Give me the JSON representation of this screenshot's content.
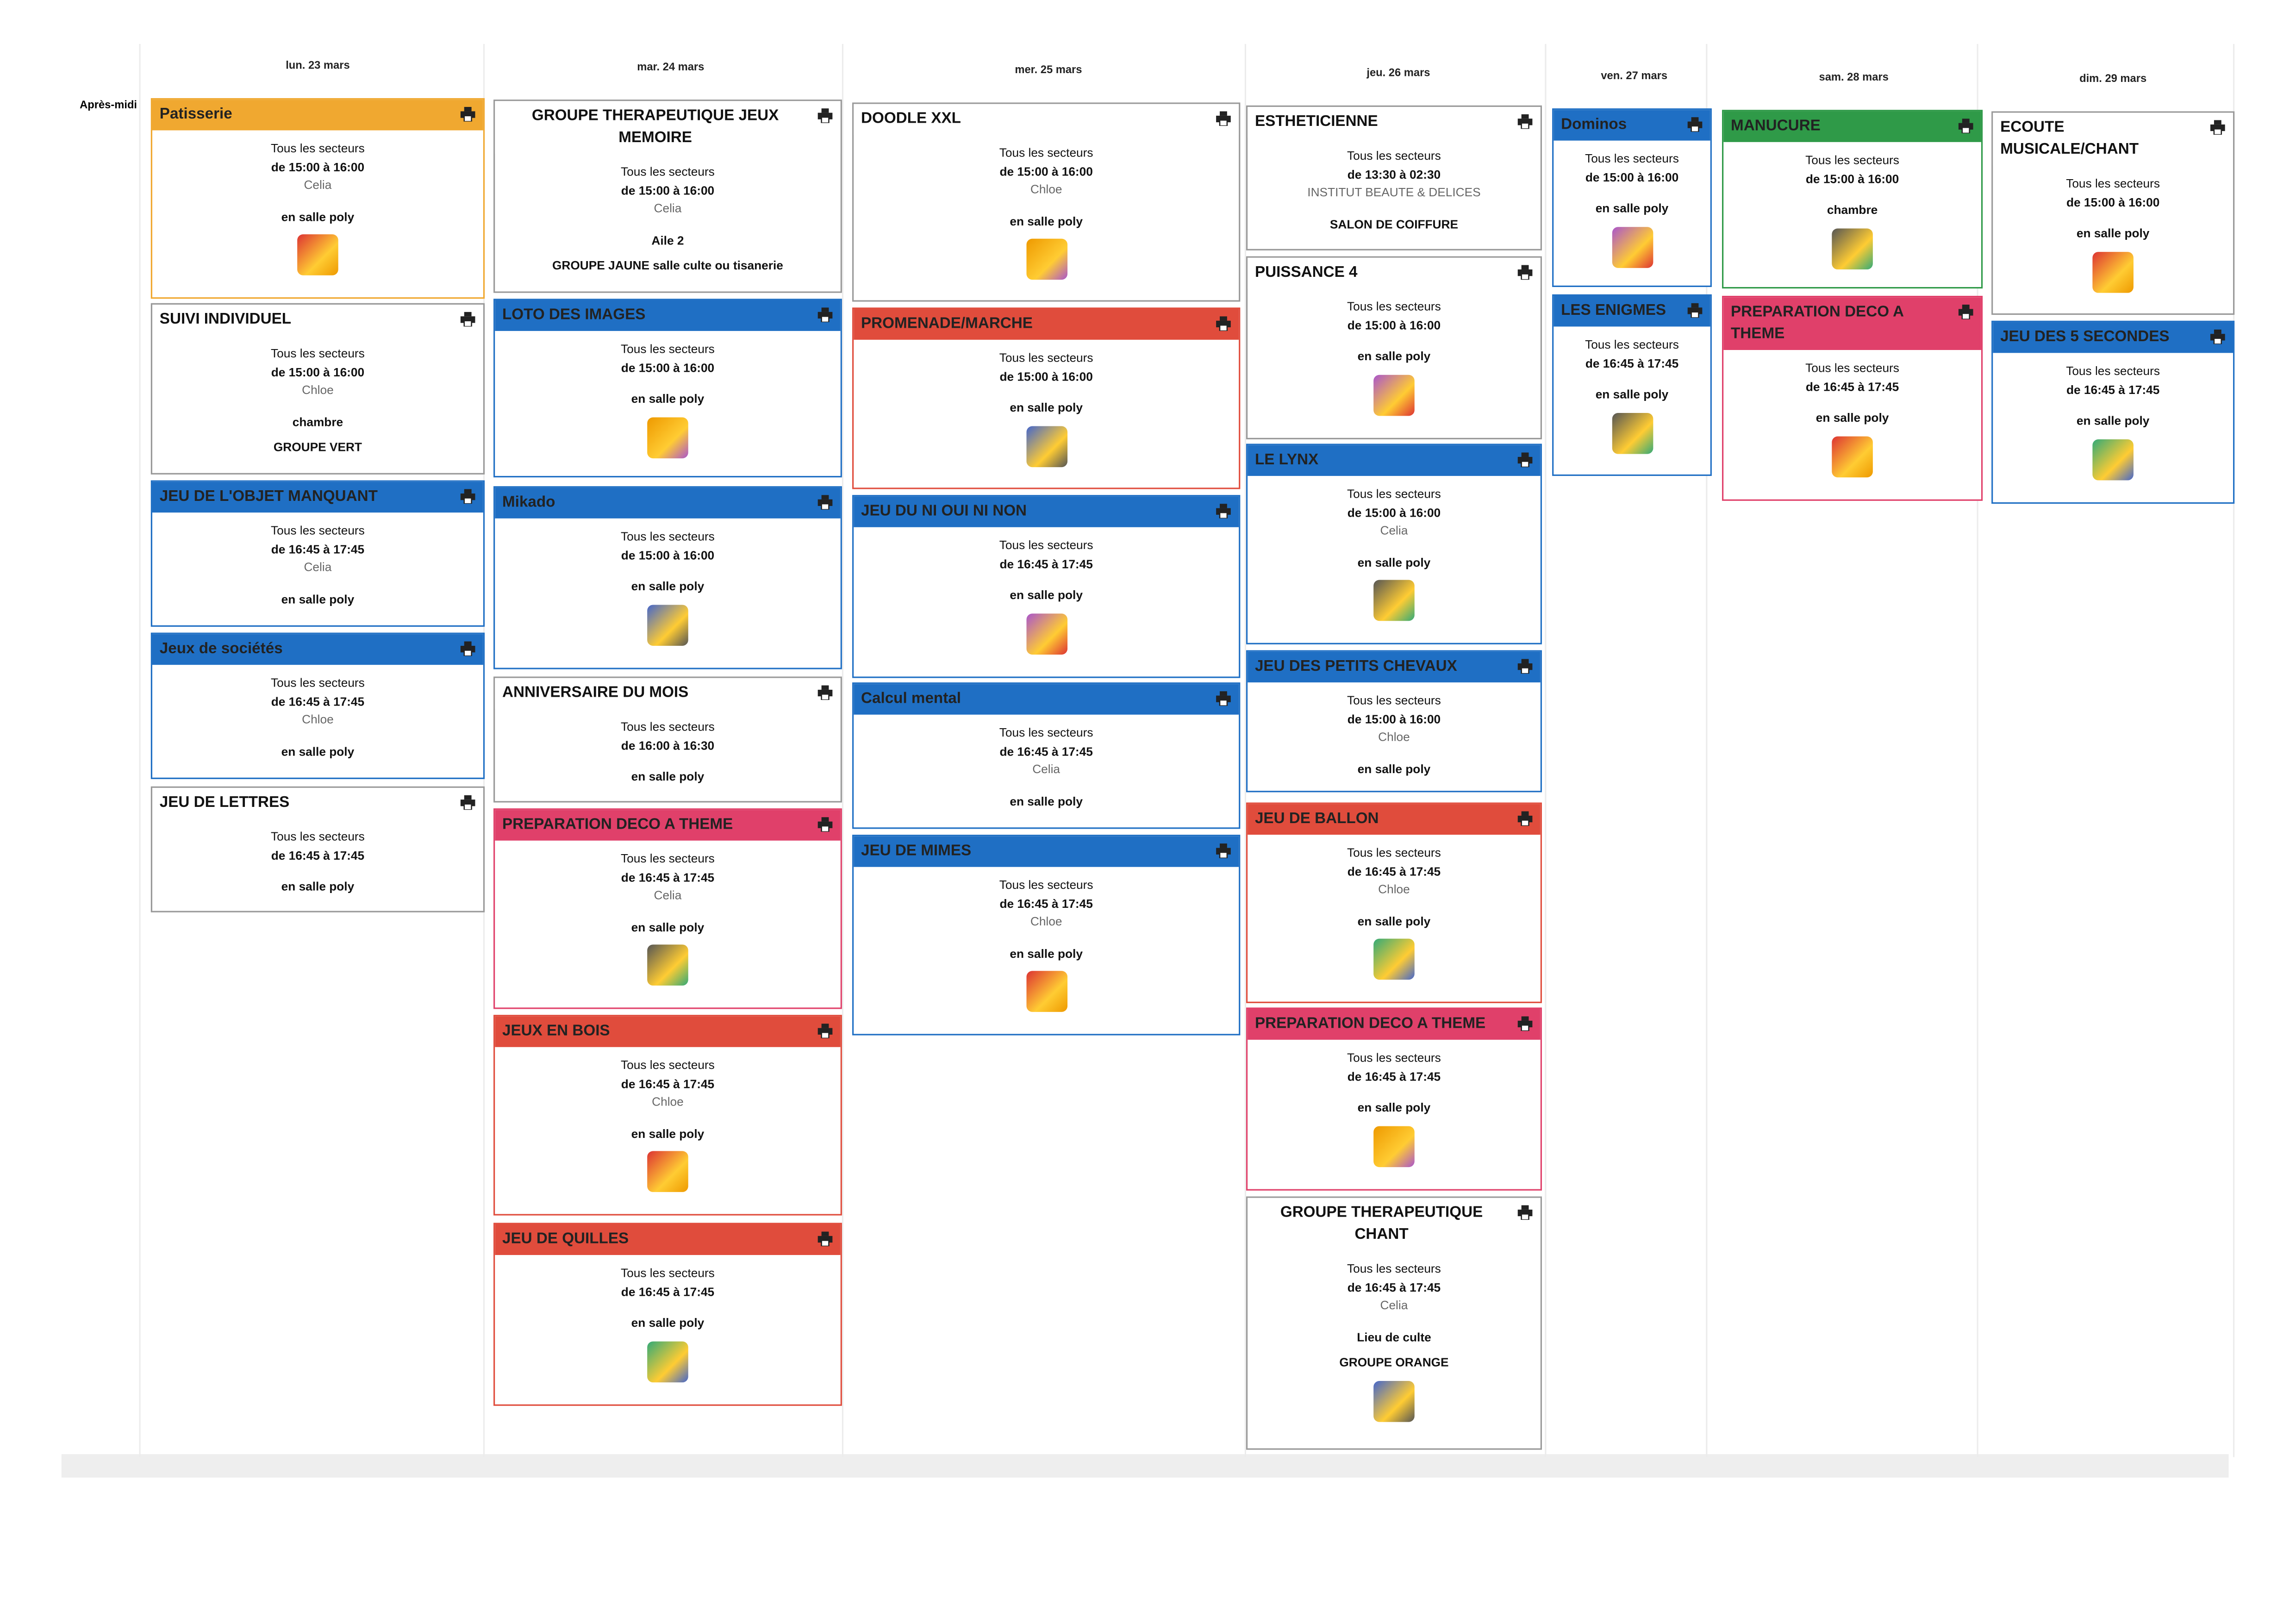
{
  "side_label": "Après-midi",
  "days": [
    {
      "label": "lun. 23 mars",
      "events": [
        {
          "title": "Patisserie",
          "color": "#f0a830",
          "sectors": "Tous les secteurs",
          "time": "de 15:00 à 16:00",
          "staff": "Celia",
          "location": "en salle poly"
        },
        {
          "title": "SUIVI INDIVIDUEL",
          "color": "#ffffff",
          "sectors": "Tous les secteurs",
          "time": "de 15:00 à 16:00",
          "staff": "Chloe",
          "location": "chambre",
          "extra": [
            "GROUPE VERT"
          ]
        },
        {
          "title": "JEU DE L'OBJET MANQUANT",
          "color": "#1f6fc4",
          "sectors": "Tous les secteurs",
          "time": "de 16:45 à 17:45",
          "staff": "Celia",
          "location": "en salle poly"
        },
        {
          "title": "Jeux de sociétés",
          "color": "#1f6fc4",
          "sectors": "Tous les secteurs",
          "time": "de 16:45 à 17:45",
          "staff": "Chloe",
          "location": "en salle poly"
        },
        {
          "title": "JEU DE LETTRES",
          "color": "#ffffff",
          "sectors": "Tous les secteurs",
          "time": "de 16:45 à 17:45",
          "location": "en salle poly"
        }
      ]
    },
    {
      "label": "mar. 24 mars",
      "events": [
        {
          "title": "GROUPE THERAPEUTIQUE JEUX MEMOIRE",
          "color": "#ffffff",
          "sectors": "Tous les secteurs",
          "time": "de 15:00 à 16:00",
          "staff": "Celia",
          "location": "Aile 2",
          "extra": [
            "GROUPE JAUNE salle culte ou tisanerie"
          ]
        },
        {
          "title": "LOTO DES IMAGES",
          "color": "#1f6fc4",
          "sectors": "Tous les secteurs",
          "time": "de 15:00 à 16:00",
          "location": "en salle poly"
        },
        {
          "title": "Mikado",
          "color": "#1f6fc4",
          "sectors": "Tous les secteurs",
          "time": "de 15:00 à 16:00",
          "location": "en salle poly"
        },
        {
          "title": "ANNIVERSAIRE DU MOIS",
          "color": "#ffffff",
          "sectors": "Tous les secteurs",
          "time": "de 16:00 à 16:30",
          "location": "en salle poly"
        },
        {
          "title": "PREPARATION DECO A THEME",
          "color": "#e0406a",
          "sectors": "Tous les secteurs",
          "time": "de 16:45 à 17:45",
          "staff": "Celia",
          "location": "en salle poly"
        },
        {
          "title": "JEUX EN BOIS",
          "color": "#e04c3c",
          "sectors": "Tous les secteurs",
          "time": "de 16:45 à 17:45",
          "staff": "Chloe",
          "location": "en salle poly"
        },
        {
          "title": "JEU DE QUILLES",
          "color": "#e04c3c",
          "sectors": "Tous les secteurs",
          "time": "de 16:45 à 17:45",
          "location": "en salle poly"
        }
      ]
    },
    {
      "label": "mer. 25 mars",
      "events": [
        {
          "title": "DOODLE XXL",
          "color": "#ffffff",
          "sectors": "Tous les secteurs",
          "time": "de 15:00 à 16:00",
          "staff": "Chloe",
          "location": "en salle poly"
        },
        {
          "title": "PROMENADE/MARCHE",
          "color": "#e04c3c",
          "sectors": "Tous les secteurs",
          "time": "de 15:00 à 16:00",
          "location": "en salle poly"
        },
        {
          "title": "JEU DU NI OUI NI NON",
          "color": "#1f6fc4",
          "sectors": "Tous les secteurs",
          "time": "de 16:45 à 17:45",
          "location": "en salle poly"
        },
        {
          "title": "Calcul mental",
          "color": "#1f6fc4",
          "sectors": "Tous les secteurs",
          "time": "de 16:45 à 17:45",
          "staff": "Celia",
          "location": "en salle poly"
        },
        {
          "title": "JEU DE MIMES",
          "color": "#1f6fc4",
          "sectors": "Tous les secteurs",
          "time": "de 16:45 à 17:45",
          "staff": "Chloe",
          "location": "en salle poly"
        }
      ]
    },
    {
      "label": "jeu. 26 mars",
      "events": [
        {
          "title": "ESTHETICIENNE",
          "color": "#ffffff",
          "sectors": "Tous les secteurs",
          "time": "de 13:30 à 02:30",
          "staff": "INSTITUT BEAUTE & DELICES",
          "location": "SALON DE COIFFURE"
        },
        {
          "title": "PUISSANCE 4",
          "color": "#ffffff",
          "sectors": "Tous les secteurs",
          "time": "de 15:00 à 16:00",
          "location": "en salle poly"
        },
        {
          "title": "LE LYNX",
          "color": "#1f6fc4",
          "sectors": "Tous les secteurs",
          "time": "de 15:00 à 16:00",
          "staff": "Celia",
          "location": "en salle poly"
        },
        {
          "title": "JEU DES PETITS CHEVAUX",
          "color": "#1f6fc4",
          "sectors": "Tous les secteurs",
          "time": "de 15:00 à 16:00",
          "staff": "Chloe",
          "location": "en salle poly"
        },
        {
          "title": "JEU DE BALLON",
          "color": "#e04c3c",
          "sectors": "Tous les secteurs",
          "time": "de 16:45 à 17:45",
          "staff": "Chloe",
          "location": "en salle poly"
        },
        {
          "title": "PREPARATION DECO A THEME",
          "color": "#e0406a",
          "sectors": "Tous les secteurs",
          "time": "de 16:45 à 17:45",
          "location": "en salle poly"
        },
        {
          "title": "GROUPE THERAPEUTIQUE CHANT",
          "color": "#ffffff",
          "sectors": "Tous les secteurs",
          "time": "de 16:45 à 17:45",
          "staff": "Celia",
          "location": "Lieu de culte",
          "extra": [
            "GROUPE ORANGE"
          ]
        }
      ]
    },
    {
      "label": "ven. 27 mars",
      "events": [
        {
          "title": "Dominos",
          "color": "#1f6fc4",
          "sectors": "Tous les secteurs",
          "time": "de 15:00 à 16:00",
          "location": "en salle poly"
        },
        {
          "title": "LES ENIGMES",
          "color": "#1f6fc4",
          "sectors": "Tous les secteurs",
          "time": "de 16:45 à 17:45",
          "location": "en salle poly"
        }
      ]
    },
    {
      "label": "sam. 28 mars",
      "events": [
        {
          "title": "MANUCURE",
          "color": "#2f9a48",
          "sectors": "Tous les secteurs",
          "time": "de 15:00 à 16:00",
          "location": "chambre"
        },
        {
          "title": "PREPARATION DECO A THEME",
          "color": "#e0406a",
          "sectors": "Tous les secteurs",
          "time": "de 16:45 à 17:45",
          "location": "en salle poly"
        }
      ]
    },
    {
      "label": "dim. 29 mars",
      "events": [
        {
          "title": "ECOUTE MUSICALE/CHANT",
          "color": "#ffffff",
          "sectors": "Tous les secteurs",
          "time": "de 15:00 à 16:00",
          "location": "en salle poly"
        },
        {
          "title": "JEU DES 5 SECONDES",
          "color": "#1f6fc4",
          "sectors": "Tous les secteurs",
          "time": "de 16:45 à 17:45",
          "location": "en salle poly"
        }
      ]
    }
  ]
}
